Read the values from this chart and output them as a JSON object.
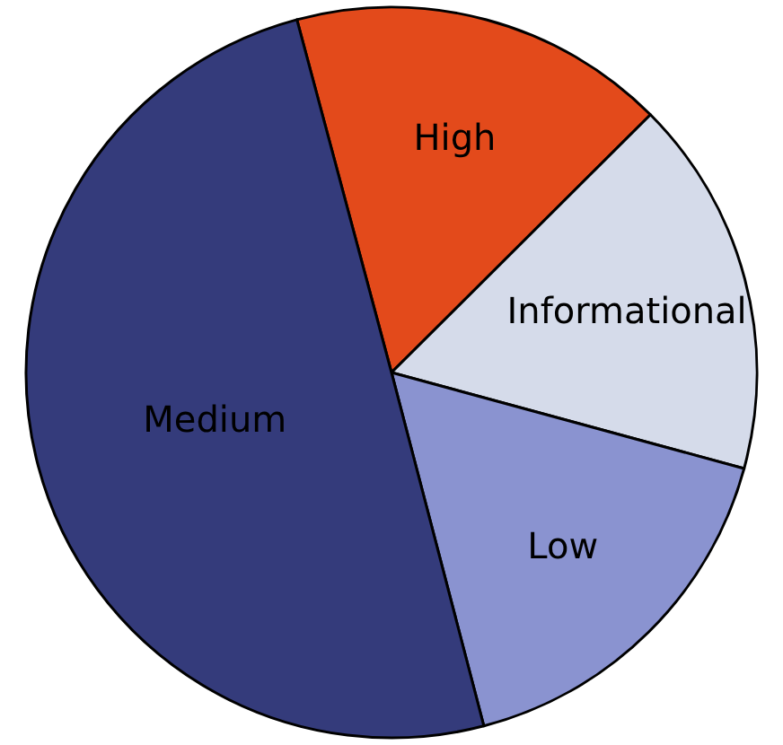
{
  "chart_data": {
    "type": "pie",
    "categories": [
      "High",
      "Informational",
      "Low",
      "Medium"
    ],
    "values": [
      16.7,
      16.7,
      16.7,
      49.9
    ],
    "colors": [
      "#e34a1b",
      "#d5dbea",
      "#8a93d0",
      "#343b7b"
    ],
    "legend": false
  }
}
